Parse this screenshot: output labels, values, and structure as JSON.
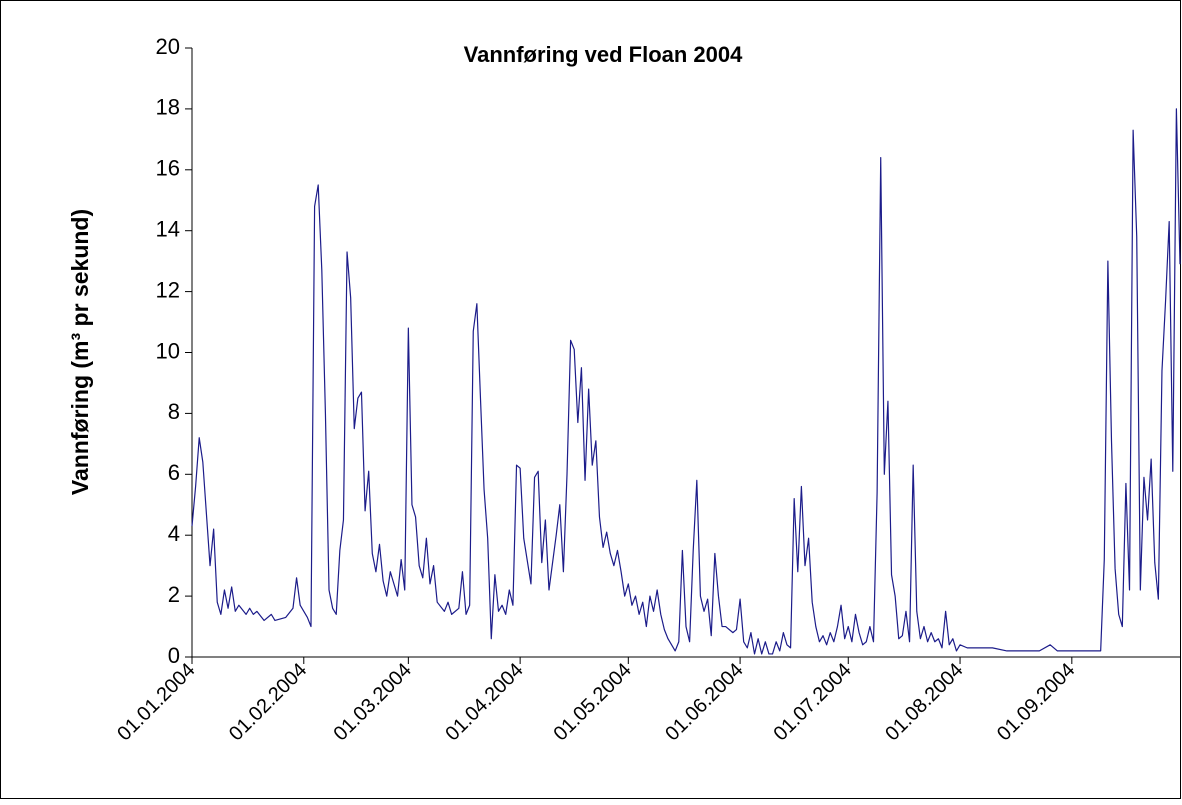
{
  "chart_data": {
    "type": "line",
    "title": "Vannføring ved Floan 2004",
    "y_label": "Vannføring (m³ pr sekund)",
    "x": [
      "01.01.2004",
      "02.01.2004",
      "03.01.2004",
      "04.01.2004",
      "05.01.2004",
      "06.01.2004",
      "07.01.2004",
      "08.01.2004",
      "09.01.2004",
      "10.01.2004",
      "11.01.2004",
      "12.01.2004",
      "13.01.2004",
      "14.01.2004",
      "16.01.2004",
      "17.01.2004",
      "18.01.2004",
      "19.01.2004",
      "21.01.2004",
      "23.01.2004",
      "24.01.2004",
      "27.01.2004",
      "29.01.2004",
      "30.01.2004",
      "31.01.2004",
      "02.02.2004",
      "03.02.2004",
      "04.02.2004",
      "05.02.2004",
      "06.02.2004",
      "07.02.2004",
      "08.02.2004",
      "09.02.2004",
      "10.02.2004",
      "11.02.2004",
      "12.02.2004",
      "13.02.2004",
      "14.02.2004",
      "15.02.2004",
      "16.02.2004",
      "17.02.2004",
      "18.02.2004",
      "19.02.2004",
      "20.02.2004",
      "21.02.2004",
      "22.02.2004",
      "23.02.2004",
      "24.02.2004",
      "25.02.2004",
      "27.02.2004",
      "28.02.2004",
      "29.02.2004",
      "01.03.2004",
      "02.03.2004",
      "03.03.2004",
      "04.03.2004",
      "05.03.2004",
      "06.03.2004",
      "07.03.2004",
      "08.03.2004",
      "09.03.2004",
      "11.03.2004",
      "12.03.2004",
      "13.03.2004",
      "15.03.2004",
      "16.03.2004",
      "17.03.2004",
      "18.03.2004",
      "19.03.2004",
      "20.03.2004",
      "21.03.2004",
      "22.03.2004",
      "23.03.2004",
      "24.03.2004",
      "25.03.2004",
      "26.03.2004",
      "27.03.2004",
      "28.03.2004",
      "29.03.2004",
      "30.03.2004",
      "31.03.2004",
      "01.04.2004",
      "02.04.2004",
      "04.04.2004",
      "05.04.2004",
      "06.04.2004",
      "07.04.2004",
      "08.04.2004",
      "09.04.2004",
      "11.04.2004",
      "12.04.2004",
      "13.04.2004",
      "14.04.2004",
      "15.04.2004",
      "16.04.2004",
      "17.04.2004",
      "18.04.2004",
      "19.04.2004",
      "20.04.2004",
      "21.04.2004",
      "22.04.2004",
      "23.04.2004",
      "24.04.2004",
      "25.04.2004",
      "26.04.2004",
      "27.04.2004",
      "28.04.2004",
      "29.04.2004",
      "30.04.2004",
      "01.05.2004",
      "02.05.2004",
      "03.05.2004",
      "04.05.2004",
      "05.05.2004",
      "06.05.2004",
      "07.05.2004",
      "08.05.2004",
      "09.05.2004",
      "10.05.2004",
      "11.05.2004",
      "12.05.2004",
      "13.05.2004",
      "14.05.2004",
      "15.05.2004",
      "16.05.2004",
      "17.05.2004",
      "18.05.2004",
      "19.05.2004",
      "20.05.2004",
      "21.05.2004",
      "22.05.2004",
      "23.05.2004",
      "24.05.2004",
      "25.05.2004",
      "26.05.2004",
      "27.05.2004",
      "28.05.2004",
      "30.05.2004",
      "31.05.2004",
      "01.06.2004",
      "02.06.2004",
      "03.06.2004",
      "04.06.2004",
      "05.06.2004",
      "06.06.2004",
      "07.06.2004",
      "08.06.2004",
      "09.06.2004",
      "10.06.2004",
      "11.06.2004",
      "12.06.2004",
      "13.06.2004",
      "14.06.2004",
      "15.06.2004",
      "16.06.2004",
      "17.06.2004",
      "18.06.2004",
      "19.06.2004",
      "20.06.2004",
      "21.06.2004",
      "22.06.2004",
      "23.06.2004",
      "24.06.2004",
      "25.06.2004",
      "26.06.2004",
      "27.06.2004",
      "28.06.2004",
      "29.06.2004",
      "30.06.2004",
      "01.07.2004",
      "02.07.2004",
      "03.07.2004",
      "04.07.2004",
      "05.07.2004",
      "06.07.2004",
      "07.07.2004",
      "08.07.2004",
      "09.07.2004",
      "10.07.2004",
      "11.07.2004",
      "12.07.2004",
      "13.07.2004",
      "14.07.2004",
      "15.07.2004",
      "16.07.2004",
      "17.07.2004",
      "18.07.2004",
      "19.07.2004",
      "20.07.2004",
      "21.07.2004",
      "22.07.2004",
      "23.07.2004",
      "24.07.2004",
      "25.07.2004",
      "26.07.2004",
      "27.07.2004",
      "28.07.2004",
      "29.07.2004",
      "30.07.2004",
      "31.07.2004",
      "01.08.2004",
      "03.08.2004",
      "06.08.2004",
      "10.08.2004",
      "14.08.2004",
      "19.08.2004",
      "23.08.2004",
      "26.08.2004",
      "28.08.2004",
      "02.09.2004",
      "06.09.2004",
      "09.09.2004",
      "10.09.2004",
      "11.09.2004",
      "12.09.2004",
      "13.09.2004",
      "14.09.2004",
      "15.09.2004",
      "16.09.2004",
      "17.09.2004",
      "18.09.2004",
      "19.09.2004",
      "20.09.2004",
      "21.09.2004",
      "22.09.2004",
      "23.09.2004",
      "24.09.2004",
      "25.09.2004",
      "26.09.2004",
      "27.09.2004",
      "28.09.2004",
      "29.09.2004",
      "30.09.2004",
      "01.10.2004"
    ],
    "series": [
      {
        "color": "#1c1c8a",
        "values": [
          4.3,
          5.6,
          7.2,
          6.4,
          4.7,
          3.0,
          4.2,
          1.8,
          1.4,
          2.2,
          1.6,
          2.3,
          1.5,
          1.7,
          1.4,
          1.6,
          1.4,
          1.5,
          1.2,
          1.4,
          1.2,
          1.3,
          1.6,
          2.6,
          1.7,
          1.3,
          1.0,
          14.8,
          15.5,
          12.7,
          8.0,
          2.2,
          1.6,
          1.4,
          3.5,
          4.5,
          13.3,
          11.8,
          7.5,
          8.5,
          8.7,
          4.8,
          6.1,
          3.4,
          2.8,
          3.7,
          2.5,
          2.0,
          2.8,
          2.0,
          3.2,
          2.2,
          10.8,
          5.0,
          4.6,
          3.0,
          2.6,
          3.9,
          2.4,
          3.0,
          1.8,
          1.5,
          1.8,
          1.4,
          1.6,
          2.8,
          1.4,
          1.7,
          10.7,
          11.6,
          8.5,
          5.5,
          3.9,
          0.6,
          2.7,
          1.5,
          1.7,
          1.4,
          2.2,
          1.7,
          6.3,
          6.2,
          3.9,
          2.4,
          5.9,
          6.1,
          3.1,
          4.5,
          2.2,
          4.0,
          5.0,
          2.8,
          6.0,
          10.4,
          10.1,
          7.7,
          9.5,
          5.8,
          8.8,
          6.3,
          7.1,
          4.6,
          3.6,
          4.1,
          3.4,
          3.0,
          3.5,
          2.8,
          2.0,
          2.4,
          1.7,
          2.0,
          1.4,
          1.8,
          1.0,
          2.0,
          1.5,
          2.2,
          1.4,
          0.9,
          0.6,
          0.4,
          0.2,
          0.5,
          3.5,
          1.0,
          0.5,
          3.5,
          5.8,
          2.0,
          1.5,
          1.9,
          0.7,
          3.4,
          2.0,
          1.0,
          1.0,
          0.8,
          0.9,
          1.9,
          0.5,
          0.3,
          0.8,
          0.1,
          0.6,
          0.1,
          0.5,
          0.1,
          0.1,
          0.5,
          0.2,
          0.8,
          0.4,
          0.3,
          5.2,
          2.8,
          5.6,
          3.0,
          3.9,
          1.8,
          1.0,
          0.5,
          0.7,
          0.4,
          0.8,
          0.5,
          1.0,
          1.7,
          0.6,
          1.0,
          0.5,
          1.4,
          0.8,
          0.4,
          0.5,
          1.0,
          0.5,
          5.4,
          16.4,
          6.0,
          8.4,
          2.7,
          2.0,
          0.6,
          0.7,
          1.5,
          0.5,
          6.3,
          1.5,
          0.6,
          1.0,
          0.5,
          0.8,
          0.5,
          0.6,
          0.3,
          1.5,
          0.4,
          0.6,
          0.2,
          0.4,
          0.3,
          0.3,
          0.3,
          0.2,
          0.2,
          0.2,
          0.4,
          0.2,
          0.2,
          0.2,
          0.2,
          3.2,
          13.0,
          7.1,
          2.9,
          1.4,
          1.0,
          5.7,
          2.2,
          17.3,
          13.8,
          2.2,
          5.9,
          4.5,
          6.5,
          3.1,
          1.9,
          9.4,
          11.7,
          14.3,
          6.1,
          18.0,
          12.9
        ]
      }
    ],
    "xlim": [
      "01.01.2004",
      "01.10.2004"
    ],
    "xticks": [
      "01.01.2004",
      "01.02.2004",
      "01.03.2004",
      "01.04.2004",
      "01.05.2004",
      "01.06.2004",
      "01.07.2004",
      "01.08.2004",
      "01.09.2004"
    ],
    "ylim": [
      0,
      20
    ],
    "yticks": [
      0,
      2,
      4,
      6,
      8,
      10,
      12,
      14,
      16,
      18,
      20
    ],
    "grid": false
  }
}
